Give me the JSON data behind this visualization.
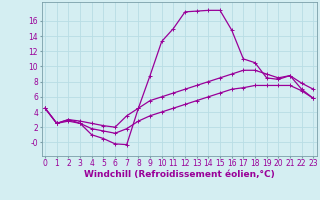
{
  "title": "",
  "xlabel": "Windchill (Refroidissement éolien,°C)",
  "background_color": "#d4eef2",
  "line_color": "#990099",
  "grid_color": "#b8dde4",
  "x_ticks": [
    0,
    1,
    2,
    3,
    4,
    5,
    6,
    7,
    8,
    9,
    10,
    11,
    12,
    13,
    14,
    15,
    16,
    17,
    18,
    19,
    20,
    21,
    22,
    23
  ],
  "y_ticks": [
    0,
    2,
    4,
    6,
    8,
    10,
    12,
    14,
    16
  ],
  "ylim": [
    -1.8,
    18.5
  ],
  "xlim": [
    -0.3,
    23.3
  ],
  "line1_y": [
    4.5,
    2.5,
    3.0,
    2.5,
    1.0,
    0.5,
    -0.2,
    -0.3,
    4.5,
    8.8,
    13.3,
    15.0,
    17.2,
    17.3,
    17.4,
    17.4,
    14.8,
    11.0,
    10.5,
    8.5,
    8.3,
    8.8,
    7.0,
    5.8
  ],
  "line2_y": [
    4.5,
    2.5,
    3.0,
    2.8,
    2.5,
    2.2,
    2.0,
    3.5,
    4.5,
    5.5,
    6.0,
    6.5,
    7.0,
    7.5,
    8.0,
    8.5,
    9.0,
    9.5,
    9.5,
    9.0,
    8.5,
    8.8,
    7.8,
    7.0
  ],
  "line3_y": [
    4.5,
    2.5,
    2.8,
    2.5,
    1.8,
    1.5,
    1.2,
    1.8,
    2.8,
    3.5,
    4.0,
    4.5,
    5.0,
    5.5,
    6.0,
    6.5,
    7.0,
    7.2,
    7.5,
    7.5,
    7.5,
    7.5,
    6.8,
    5.8
  ],
  "marker": "+",
  "markersize": 3,
  "linewidth": 0.9,
  "xlabel_fontsize": 6.5,
  "tick_fontsize": 5.5
}
